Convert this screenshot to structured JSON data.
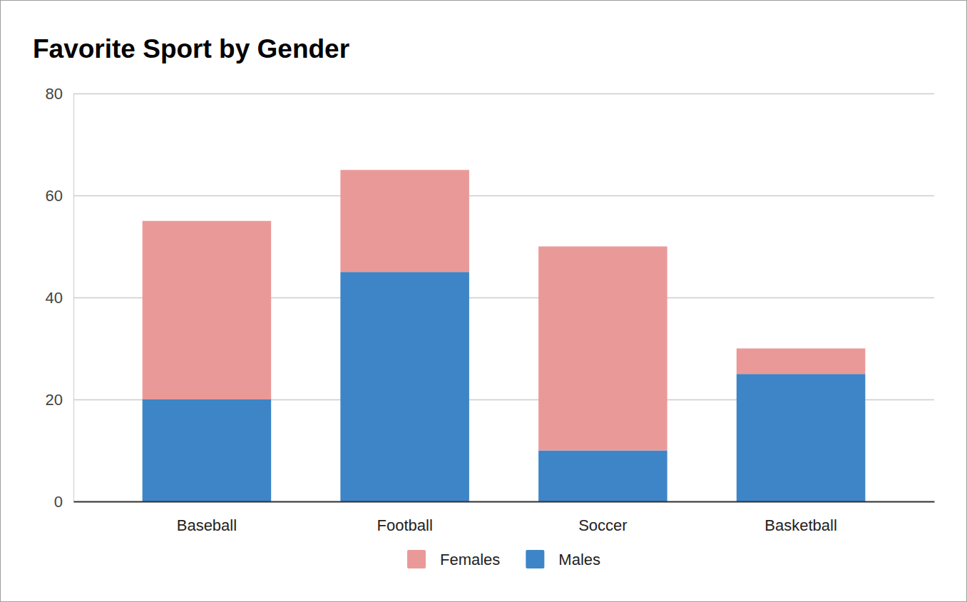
{
  "chart_data": {
    "type": "bar",
    "title": "Favorite Sport by Gender",
    "categories": [
      "Baseball",
      "Football",
      "Soccer",
      "Basketball"
    ],
    "series": [
      {
        "name": "Males",
        "color": "#3d85c6",
        "values": [
          20,
          45,
          10,
          25
        ]
      },
      {
        "name": "Females",
        "color": "#ea9999",
        "values": [
          35,
          20,
          40,
          5
        ]
      }
    ],
    "stacked": true,
    "ylim": [
      0,
      80
    ],
    "yticks": [
      0,
      20,
      40,
      60,
      80
    ],
    "grid": true,
    "legend": "bottom"
  }
}
